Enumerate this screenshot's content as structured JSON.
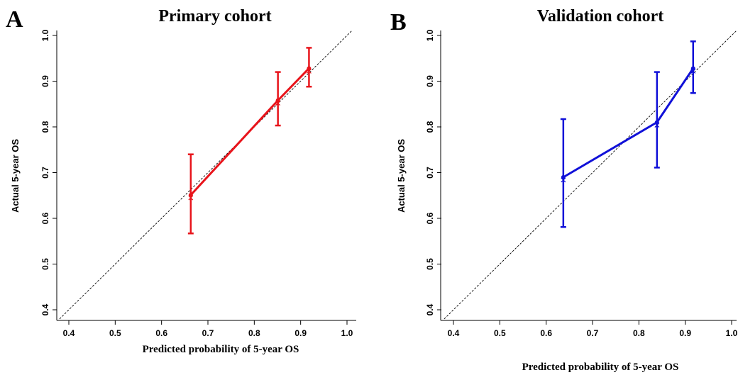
{
  "chart_data": [
    {
      "type": "line",
      "panel_label": "A",
      "title": "Primary cohort",
      "xlabel": "Predicted probability of 5-year OS",
      "ylabel": "Actual 5-year OS",
      "xlim": [
        0.38,
        1.01
      ],
      "ylim": [
        0.38,
        1.01
      ],
      "x_ticks": [
        "0.4",
        "0.5",
        "0.6",
        "0.7",
        "0.8",
        "0.9",
        "1.0"
      ],
      "y_ticks": [
        "0.4",
        "0.5",
        "0.6",
        "0.7",
        "0.8",
        "0.9",
        "1.0"
      ],
      "reference_line": "ideal",
      "grid": false,
      "color": "#e8141b",
      "points": [
        {
          "x": 0.663,
          "y": 0.651,
          "lower": 0.567,
          "upper": 0.74
        },
        {
          "x": 0.851,
          "y": 0.858,
          "lower": 0.803,
          "upper": 0.92
        },
        {
          "x": 0.918,
          "y": 0.928,
          "lower": 0.888,
          "upper": 0.973
        }
      ]
    },
    {
      "type": "line",
      "panel_label": "B",
      "title": "Validation cohort",
      "xlabel": "Predicted probability of 5-year OS",
      "ylabel": "Actual 5-year OS",
      "xlim": [
        0.38,
        1.01
      ],
      "ylim": [
        0.38,
        1.01
      ],
      "x_ticks": [
        "0.4",
        "0.5",
        "0.6",
        "0.7",
        "0.8",
        "0.9",
        "1.0"
      ],
      "y_ticks": [
        "0.4",
        "0.5",
        "0.6",
        "0.7",
        "0.8",
        "0.9",
        "1.0"
      ],
      "reference_line": "ideal",
      "grid": false,
      "color": "#1010d8",
      "points": [
        {
          "x": 0.637,
          "y": 0.69,
          "lower": 0.581,
          "upper": 0.817
        },
        {
          "x": 0.839,
          "y": 0.81,
          "lower": 0.711,
          "upper": 0.92
        },
        {
          "x": 0.917,
          "y": 0.928,
          "lower": 0.874,
          "upper": 0.987
        }
      ]
    }
  ]
}
